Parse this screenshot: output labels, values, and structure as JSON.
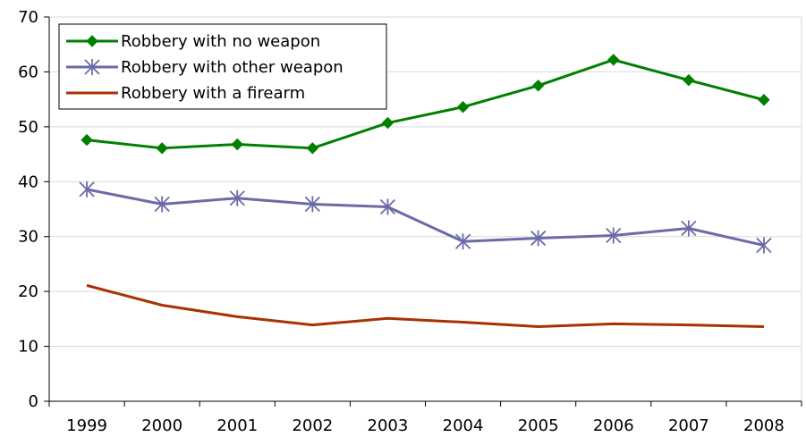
{
  "chart_data": {
    "type": "line",
    "title": "",
    "xlabel": "",
    "ylabel": "",
    "categories": [
      "1999",
      "2000",
      "2001",
      "2002",
      "2003",
      "2004",
      "2005",
      "2006",
      "2007",
      "2008"
    ],
    "ylim": [
      0,
      70
    ],
    "yticks": [
      "0",
      "10",
      "20",
      "30",
      "40",
      "50",
      "60",
      "70"
    ],
    "grid": true,
    "legend_position": "top-left",
    "series": [
      {
        "name": "Robbery with no weapon",
        "values": [
          47.6,
          46.1,
          46.8,
          46.1,
          50.7,
          53.6,
          57.5,
          62.2,
          58.5,
          54.9
        ],
        "color": "#008000",
        "marker": "diamond"
      },
      {
        "name": "Robbery with other weapon",
        "values": [
          38.6,
          35.9,
          37.0,
          35.9,
          35.4,
          29.1,
          29.7,
          30.2,
          31.5,
          28.4
        ],
        "color": "#6B6BA8",
        "marker": "asterisk"
      },
      {
        "name": "Robbery with a firearm",
        "values": [
          21.1,
          17.5,
          15.4,
          13.9,
          15.1,
          14.4,
          13.6,
          14.1,
          13.9,
          13.6
        ],
        "color": "#A83200",
        "marker": "none"
      }
    ]
  }
}
